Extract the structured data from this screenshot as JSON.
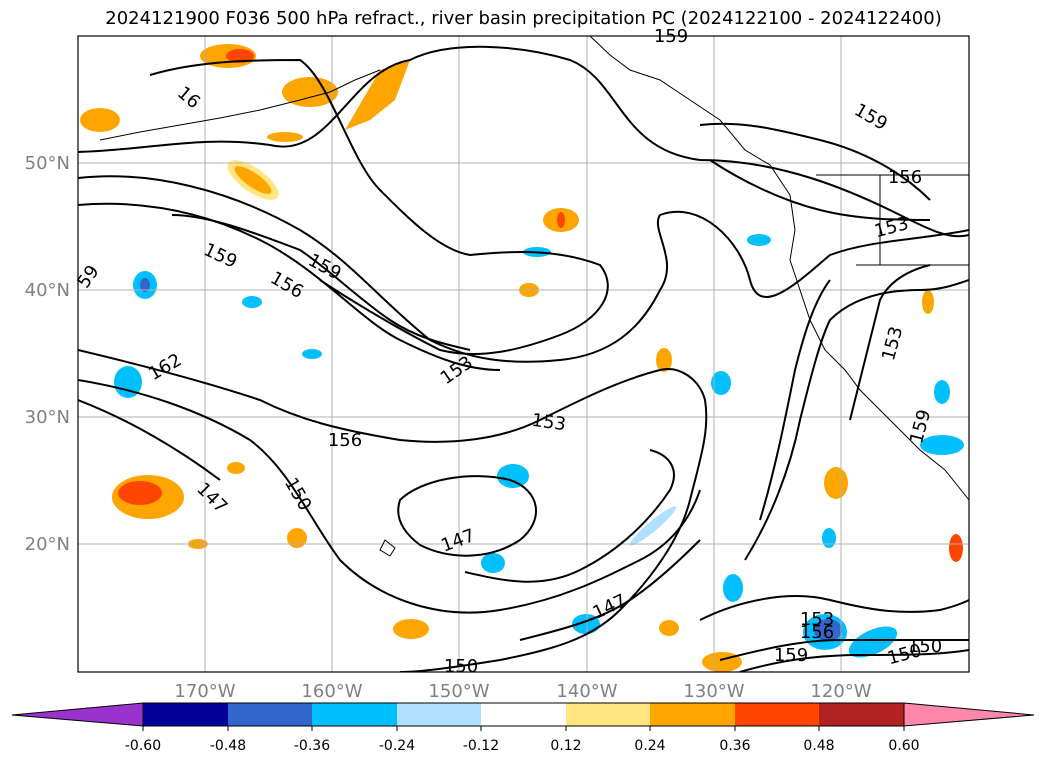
{
  "title": "2024121900 F036 500 hPa refract., river basin precipitation PC (2024122100 - 2024122400)",
  "map": {
    "lon_labels": [
      "170°W",
      "160°W",
      "150°W",
      "140°W",
      "130°W",
      "120°W"
    ],
    "lat_labels": [
      "50°N",
      "40°N",
      "30°N",
      "20°N"
    ],
    "contour_labels": [
      "159",
      "16",
      "159",
      "156",
      "159",
      "59",
      "162",
      "153",
      "156",
      "153",
      "150",
      "147",
      "147",
      "147",
      "150",
      "153",
      "156",
      "159",
      "150",
      "159",
      "156",
      "153",
      "153",
      "159",
      "150"
    ],
    "contour_color": "#000000",
    "grid_color": "#b0b0b0",
    "axis_label_color": "#808080"
  },
  "colorbar": {
    "tick_labels": [
      "-0.60",
      "-0.48",
      "-0.36",
      "-0.24",
      "-0.12",
      "0.12",
      "0.24",
      "0.36",
      "0.48",
      "0.60"
    ],
    "colors": [
      "#9933cc",
      "#000099",
      "#3366cc",
      "#00bfff",
      "#b0e0ff",
      "#ffffff",
      "#ffe680",
      "#ffa500",
      "#ff4500",
      "#b22222",
      "#ff88aa"
    ]
  }
}
